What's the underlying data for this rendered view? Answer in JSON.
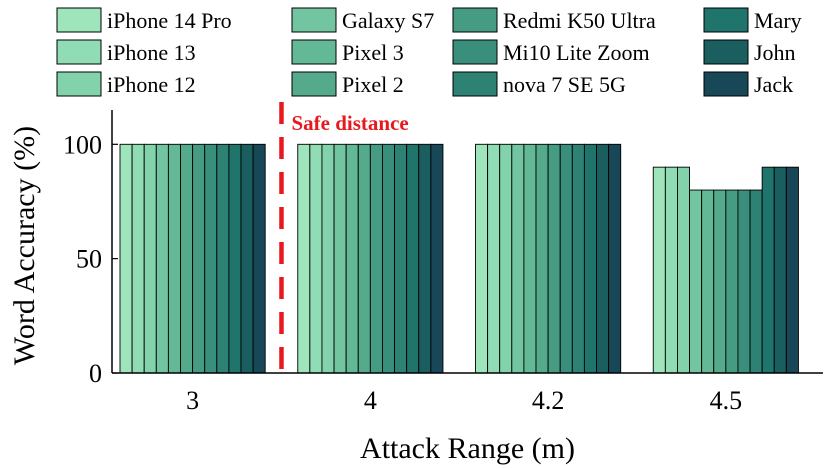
{
  "chart_data": {
    "type": "bar",
    "title": "",
    "xlabel": "Attack Range (m)",
    "ylabel": "Word Accuracy (%)",
    "ylim": [
      0,
      115
    ],
    "yticks": [
      0,
      50,
      100
    ],
    "grid": false,
    "legend_position": "top",
    "categories": [
      "3",
      "4",
      "4.2",
      "4.5"
    ],
    "series": [
      {
        "name": "iPhone 14 Pro",
        "color": "#9ee5bc",
        "values": [
          100,
          100,
          100,
          90
        ]
      },
      {
        "name": "iPhone 13",
        "color": "#90dcb4",
        "values": [
          100,
          100,
          100,
          90
        ]
      },
      {
        "name": "iPhone 12",
        "color": "#82d2ab",
        "values": [
          100,
          100,
          100,
          90
        ]
      },
      {
        "name": "Galaxy S7",
        "color": "#72c5a0",
        "values": [
          100,
          100,
          100,
          80
        ]
      },
      {
        "name": "Pixel 3",
        "color": "#63b896",
        "values": [
          100,
          100,
          100,
          80
        ]
      },
      {
        "name": "Pixel 2",
        "color": "#54aa8b",
        "values": [
          100,
          100,
          100,
          80
        ]
      },
      {
        "name": "Redmi K50 Ultra",
        "color": "#469c82",
        "values": [
          100,
          100,
          100,
          80
        ]
      },
      {
        "name": "Mi10 Lite Zoom",
        "color": "#398f7b",
        "values": [
          100,
          100,
          100,
          80
        ]
      },
      {
        "name": "nova 7 SE 5G",
        "color": "#2d8273",
        "values": [
          100,
          100,
          100,
          80
        ]
      },
      {
        "name": "Mary",
        "color": "#1f746b",
        "values": [
          100,
          100,
          100,
          90
        ]
      },
      {
        "name": "John",
        "color": "#1a5e60",
        "values": [
          100,
          100,
          100,
          90
        ]
      },
      {
        "name": "Jack",
        "color": "#184757",
        "values": [
          100,
          100,
          100,
          90
        ]
      }
    ],
    "annotations": [
      {
        "text": "Safe distance",
        "color": "#e8191e"
      }
    ]
  }
}
